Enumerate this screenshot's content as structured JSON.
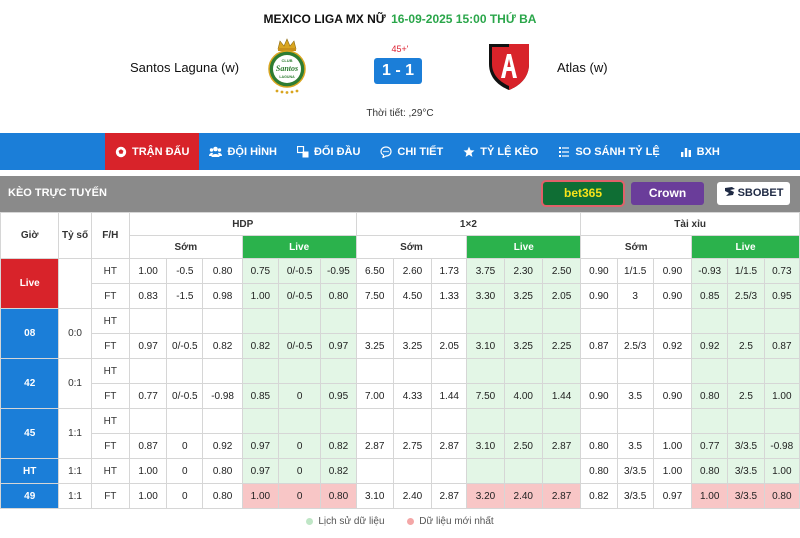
{
  "header": {
    "league": "MEXICO LIGA MX NỮ",
    "datetime": "16-09-2025 15:00 THỨ BA",
    "home_team": "Santos Laguna (w)",
    "away_team": "Atlas (w)",
    "minute": "45+'",
    "score": "1 - 1",
    "weather": "Thời tiết: ,29°C",
    "home_logo": {
      "top_text": "CLUB",
      "mid_text": "Santos",
      "bottom_text": "LAGUNA",
      "color": "#2e7d32"
    },
    "away_logo": {
      "text": "A",
      "colors": [
        "#d8232a",
        "#111111"
      ]
    }
  },
  "tabs": [
    {
      "label": "TRẬN ĐẤU",
      "icon": "soccer-ball-icon",
      "active": true
    },
    {
      "label": "ĐỘI HÌNH",
      "icon": "team-icon",
      "active": false
    },
    {
      "label": "ĐỐI ĐẦU",
      "icon": "versus-icon",
      "active": false
    },
    {
      "label": "CHI TIẾT",
      "icon": "detail-icon",
      "active": false
    },
    {
      "label": "TỶ LỆ KÈO",
      "icon": "star-icon",
      "active": false
    },
    {
      "label": "SO SÁNH TỶ LỆ",
      "icon": "compare-icon",
      "active": false
    },
    {
      "label": "BXH",
      "icon": "chart-icon",
      "active": false
    }
  ],
  "odds": {
    "title": "KÈO TRỰC TUYẾN",
    "bookmakers": {
      "bet365": "bet365",
      "crown": "Crown",
      "sbobet": "SBOBET"
    },
    "columns": {
      "time": "Giờ",
      "score": "Tỷ số",
      "fh": "F/H",
      "hdp": "HDP",
      "x12": "1×2",
      "ou": "Tài xỉu",
      "early": "Sớm",
      "live": "Live"
    },
    "groups": [
      {
        "time": "Live",
        "score": "",
        "is_live": true,
        "rows": [
          {
            "fh": "HT",
            "cells": [
              "1.00",
              "-0.5",
              "0.80",
              "0.75",
              "0/-0.5",
              "-0.95",
              "6.50",
              "2.60",
              "1.73",
              "3.75",
              "2.30",
              "2.50",
              "0.90",
              "1/1.5",
              "0.90",
              "-0.93",
              "1/1.5",
              "0.73"
            ],
            "red": []
          },
          {
            "fh": "FT",
            "cells": [
              "0.83",
              "-1.5",
              "0.98",
              "1.00",
              "0/-0.5",
              "0.80",
              "7.50",
              "4.50",
              "1.33",
              "3.30",
              "3.25",
              "2.05",
              "0.90",
              "3",
              "0.90",
              "0.85",
              "2.5/3",
              "0.95"
            ],
            "red": []
          }
        ]
      },
      {
        "time": "08",
        "score": "0:0",
        "is_live": false,
        "rows": [
          {
            "fh": "HT",
            "cells": [
              "",
              "",
              "",
              "",
              "",
              "",
              "",
              "",
              "",
              "",
              "",
              "",
              "",
              "",
              "",
              "",
              "",
              ""
            ],
            "red": []
          },
          {
            "fh": "FT",
            "cells": [
              "0.97",
              "0/-0.5",
              "0.82",
              "0.82",
              "0/-0.5",
              "0.97",
              "3.25",
              "3.25",
              "2.05",
              "3.10",
              "3.25",
              "2.25",
              "0.87",
              "2.5/3",
              "0.92",
              "0.92",
              "2.5",
              "0.87"
            ],
            "red": []
          }
        ]
      },
      {
        "time": "42",
        "score": "0:1",
        "is_live": false,
        "rows": [
          {
            "fh": "HT",
            "cells": [
              "",
              "",
              "",
              "",
              "",
              "",
              "",
              "",
              "",
              "",
              "",
              "",
              "",
              "",
              "",
              "",
              "",
              ""
            ],
            "red": []
          },
          {
            "fh": "FT",
            "cells": [
              "0.77",
              "0/-0.5",
              "-0.98",
              "0.85",
              "0",
              "0.95",
              "7.00",
              "4.33",
              "1.44",
              "7.50",
              "4.00",
              "1.44",
              "0.90",
              "3.5",
              "0.90",
              "0.80",
              "2.5",
              "1.00"
            ],
            "red": []
          }
        ]
      },
      {
        "time": "45",
        "score": "1:1",
        "is_live": false,
        "rows": [
          {
            "fh": "HT",
            "cells": [
              "",
              "",
              "",
              "",
              "",
              "",
              "",
              "",
              "",
              "",
              "",
              "",
              "",
              "",
              "",
              "",
              "",
              ""
            ],
            "red": []
          },
          {
            "fh": "FT",
            "cells": [
              "0.87",
              "0",
              "0.92",
              "0.97",
              "0",
              "0.82",
              "2.87",
              "2.75",
              "2.87",
              "3.10",
              "2.50",
              "2.87",
              "0.80",
              "3.5",
              "1.00",
              "0.77",
              "3/3.5",
              "-0.98"
            ],
            "red": []
          }
        ]
      },
      {
        "time": "HT",
        "score": "1:1",
        "is_live": false,
        "rows": [
          {
            "fh": "HT",
            "cells": [
              "1.00",
              "0",
              "0.80",
              "0.97",
              "0",
              "0.82",
              "",
              "",
              "",
              "",
              "",
              "",
              "0.80",
              "3/3.5",
              "1.00",
              "0.80",
              "3/3.5",
              "1.00"
            ],
            "red": []
          }
        ]
      },
      {
        "time": "49",
        "score": "1:1",
        "is_live": false,
        "rows": [
          {
            "fh": "FT",
            "cells": [
              "1.00",
              "0",
              "0.80",
              "1.00",
              "0",
              "0.80",
              "3.10",
              "2.40",
              "2.87",
              "3.20",
              "2.40",
              "2.87",
              "0.82",
              "3/3.5",
              "0.97",
              "1.00",
              "3/3.5",
              "0.80"
            ],
            "red": [
              3,
              4,
              5,
              9,
              10,
              11,
              15,
              16,
              17
            ]
          }
        ]
      }
    ]
  },
  "legend": {
    "history": "Lịch sử dữ liệu",
    "latest": "Dữ liệu mới nhất",
    "colors": {
      "history": "#bfe6c6",
      "latest": "#f4a7a7"
    }
  }
}
